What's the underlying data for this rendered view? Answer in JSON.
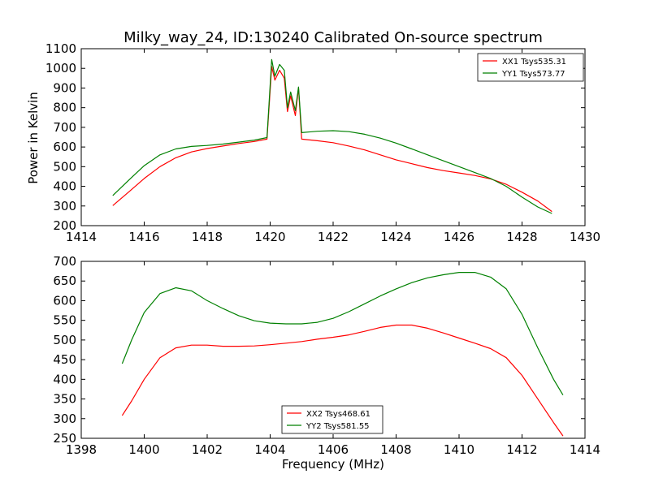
{
  "title": "Milky_way_24, ID:130240 Calibrated On-source spectrum",
  "chart_data": [
    {
      "type": "line",
      "ylabel": "Power in Kelvin",
      "xlabel": "",
      "xlim": [
        1414,
        1430
      ],
      "ylim": [
        200,
        1100
      ],
      "xticks": [
        1414,
        1416,
        1418,
        1420,
        1422,
        1424,
        1426,
        1428,
        1430
      ],
      "yticks": [
        200,
        300,
        400,
        500,
        600,
        700,
        800,
        900,
        1000,
        1100
      ],
      "legend_placement": "top-right",
      "series": [
        {
          "name": "XX1 Tsys535.31",
          "color": "#ff0000",
          "x": [
            1415.0,
            1415.5,
            1416.0,
            1416.5,
            1417.0,
            1417.5,
            1418.0,
            1418.5,
            1419.0,
            1419.5,
            1419.9,
            1420.05,
            1420.15,
            1420.3,
            1420.45,
            1420.55,
            1420.65,
            1420.8,
            1420.9,
            1421.0,
            1421.5,
            1422.0,
            1422.5,
            1423.0,
            1423.5,
            1424.0,
            1424.5,
            1425.0,
            1425.5,
            1426.0,
            1426.5,
            1427.0,
            1427.5,
            1428.0,
            1428.5,
            1428.95
          ],
          "y": [
            302,
            370,
            440,
            500,
            545,
            575,
            592,
            605,
            618,
            628,
            640,
            1010,
            940,
            990,
            950,
            780,
            860,
            760,
            900,
            640,
            632,
            622,
            605,
            585,
            560,
            535,
            515,
            495,
            480,
            468,
            455,
            438,
            410,
            370,
            325,
            272
          ]
        },
        {
          "name": "YY1 Tsys573.77",
          "color": "#008000",
          "x": [
            1415.0,
            1415.5,
            1416.0,
            1416.5,
            1417.0,
            1417.5,
            1418.0,
            1418.5,
            1419.0,
            1419.5,
            1419.9,
            1420.05,
            1420.15,
            1420.3,
            1420.45,
            1420.55,
            1420.65,
            1420.8,
            1420.9,
            1421.0,
            1421.5,
            1422.0,
            1422.5,
            1423.0,
            1423.5,
            1424.0,
            1424.5,
            1425.0,
            1425.5,
            1426.0,
            1426.5,
            1427.0,
            1427.5,
            1428.0,
            1428.5,
            1428.95
          ],
          "y": [
            353,
            430,
            505,
            560,
            590,
            603,
            608,
            615,
            625,
            635,
            648,
            1045,
            960,
            1020,
            990,
            800,
            880,
            785,
            905,
            673,
            680,
            683,
            678,
            665,
            645,
            620,
            590,
            560,
            530,
            500,
            470,
            440,
            400,
            345,
            295,
            262
          ]
        }
      ]
    },
    {
      "type": "line",
      "ylabel": "",
      "xlabel": "Frequency (MHz)",
      "xlim": [
        1398,
        1414
      ],
      "ylim": [
        250,
        700
      ],
      "xticks": [
        1398,
        1400,
        1402,
        1404,
        1406,
        1408,
        1410,
        1412,
        1414
      ],
      "yticks": [
        250,
        300,
        350,
        400,
        450,
        500,
        550,
        600,
        650,
        700
      ],
      "legend_placement": "bottom-center",
      "series": [
        {
          "name": "XX2 Tsys468.61",
          "color": "#ff0000",
          "x": [
            1399.3,
            1399.6,
            1400.0,
            1400.5,
            1401.0,
            1401.5,
            1402.0,
            1402.5,
            1403.0,
            1403.5,
            1404.0,
            1404.5,
            1405.0,
            1405.5,
            1406.0,
            1406.5,
            1407.0,
            1407.5,
            1408.0,
            1408.5,
            1409.0,
            1409.5,
            1410.0,
            1410.5,
            1411.0,
            1411.5,
            1412.0,
            1412.5,
            1413.0,
            1413.3
          ],
          "y": [
            308,
            345,
            400,
            455,
            480,
            487,
            487,
            484,
            484,
            485,
            488,
            492,
            496,
            502,
            507,
            513,
            522,
            532,
            538,
            538,
            530,
            518,
            505,
            492,
            478,
            455,
            410,
            350,
            290,
            256
          ]
        },
        {
          "name": "YY2 Tsys581.55",
          "color": "#008000",
          "x": [
            1399.3,
            1399.6,
            1400.0,
            1400.5,
            1401.0,
            1401.5,
            1402.0,
            1402.5,
            1403.0,
            1403.5,
            1404.0,
            1404.5,
            1405.0,
            1405.5,
            1406.0,
            1406.5,
            1407.0,
            1407.5,
            1408.0,
            1408.5,
            1409.0,
            1409.5,
            1410.0,
            1410.5,
            1411.0,
            1411.5,
            1412.0,
            1412.5,
            1413.0,
            1413.3
          ],
          "y": [
            440,
            500,
            570,
            618,
            633,
            625,
            600,
            580,
            562,
            549,
            543,
            541,
            541,
            545,
            555,
            572,
            592,
            612,
            630,
            646,
            658,
            666,
            672,
            672,
            660,
            630,
            565,
            480,
            400,
            360
          ]
        }
      ]
    }
  ]
}
